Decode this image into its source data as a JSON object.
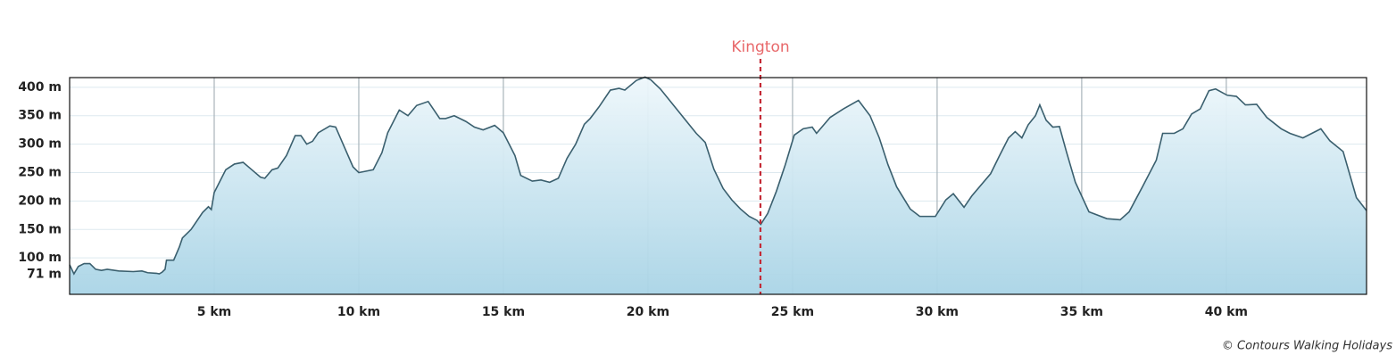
{
  "chart_data": {
    "type": "area",
    "x": [
      0,
      0.15,
      0.3,
      0.5,
      0.7,
      0.9,
      1.1,
      1.3,
      1.7,
      2.2,
      2.5,
      2.7,
      3.0,
      3.1,
      3.2,
      3.3,
      3.35,
      3.6,
      3.8,
      3.9,
      4.2,
      4.6,
      4.8,
      4.9,
      5.0,
      5.1,
      5.4,
      5.7,
      6.0,
      6.3,
      6.6,
      6.75,
      7.0,
      7.2,
      7.5,
      7.8,
      8.0,
      8.2,
      8.4,
      8.6,
      9.0,
      9.2,
      9.5,
      9.8,
      10.0,
      10.2,
      10.5,
      10.8,
      11.0,
      11.4,
      11.7,
      12.0,
      12.4,
      12.8,
      13.0,
      13.3,
      13.7,
      14.0,
      14.3,
      14.7,
      15.0,
      15.4,
      15.6,
      16.0,
      16.3,
      16.6,
      16.9,
      17.2,
      17.5,
      17.8,
      18.0,
      18.3,
      18.7,
      19.0,
      19.2,
      19.6,
      19.9,
      20.1,
      20.43,
      21.05,
      21.67,
      21.98,
      22.28,
      22.6,
      22.9,
      23.2,
      23.5,
      23.77,
      23.9,
      24.14,
      24.44,
      24.75,
      25.06,
      25.37,
      25.68,
      25.83,
      26.3,
      26.76,
      27.28,
      27.68,
      28.0,
      28.3,
      28.6,
      29.07,
      29.4,
      29.94,
      30.3,
      30.56,
      30.93,
      31.2,
      31.85,
      32.16,
      32.47,
      32.7,
      32.93,
      33.15,
      33.4,
      33.55,
      33.77,
      34.0,
      34.23,
      34.47,
      34.78,
      35.25,
      35.87,
      36.33,
      36.64,
      37.1,
      37.58,
      37.8,
      38.2,
      38.5,
      38.8,
      39.1,
      39.4,
      39.63,
      40.03,
      40.35,
      40.66,
      41.05,
      41.4,
      41.9,
      42.2,
      42.65,
      42.96,
      43.27,
      43.58,
      44.04,
      44.5,
      44.85
    ],
    "values": [
      88,
      72,
      85,
      90,
      90,
      80,
      78,
      80,
      77,
      76,
      77,
      74,
      73,
      72,
      75,
      80,
      96,
      96,
      120,
      135,
      150,
      180,
      190,
      185,
      215,
      225,
      255,
      265,
      268,
      255,
      242,
      240,
      255,
      258,
      280,
      315,
      315,
      300,
      305,
      320,
      332,
      330,
      295,
      260,
      250,
      252,
      255,
      285,
      320,
      360,
      350,
      368,
      375,
      345,
      345,
      350,
      340,
      330,
      325,
      333,
      320,
      280,
      245,
      235,
      237,
      233,
      240,
      275,
      300,
      335,
      345,
      365,
      395,
      398,
      395,
      412,
      418,
      413,
      397,
      358,
      319,
      303,
      256,
      222,
      202,
      186,
      173,
      166,
      159,
      178,
      217,
      264,
      316,
      327,
      330,
      319,
      347,
      362,
      377,
      350,
      311,
      264,
      225,
      186,
      173,
      173,
      202,
      213,
      189,
      209,
      248,
      280,
      311,
      322,
      311,
      334,
      350,
      369,
      342,
      330,
      331,
      287,
      233,
      181,
      169,
      167,
      181,
      225,
      272,
      319,
      319,
      327,
      353,
      362,
      394,
      397,
      386,
      384,
      369,
      370,
      347,
      327,
      319,
      311,
      319,
      327,
      306,
      287,
      206,
      183
    ],
    "color": "#3a5f6e",
    "xlim": [
      0,
      44.85
    ],
    "ylim": [
      36,
      417
    ],
    "xticks": [
      {
        "value": 5,
        "label": "5 km"
      },
      {
        "value": 10,
        "label": "10 km"
      },
      {
        "value": 15,
        "label": "15 km"
      },
      {
        "value": 20,
        "label": "20 km"
      },
      {
        "value": 25,
        "label": "25 km"
      },
      {
        "value": 30,
        "label": "30 km"
      },
      {
        "value": 35,
        "label": "35 km"
      },
      {
        "value": 40,
        "label": "40 km"
      }
    ],
    "yticks": [
      {
        "value": 71,
        "label": "71 m"
      },
      {
        "value": 100,
        "label": "100 m"
      },
      {
        "value": 150,
        "label": "150 m"
      },
      {
        "value": 200,
        "label": "200 m"
      },
      {
        "value": 250,
        "label": "250 m"
      },
      {
        "value": 300,
        "label": "300 m"
      },
      {
        "value": 350,
        "label": "350 m"
      },
      {
        "value": 400,
        "label": "400 m"
      }
    ],
    "annotation": {
      "label": "Kington",
      "x": 23.89
    },
    "credit": "© Contours Walking Holidays"
  }
}
